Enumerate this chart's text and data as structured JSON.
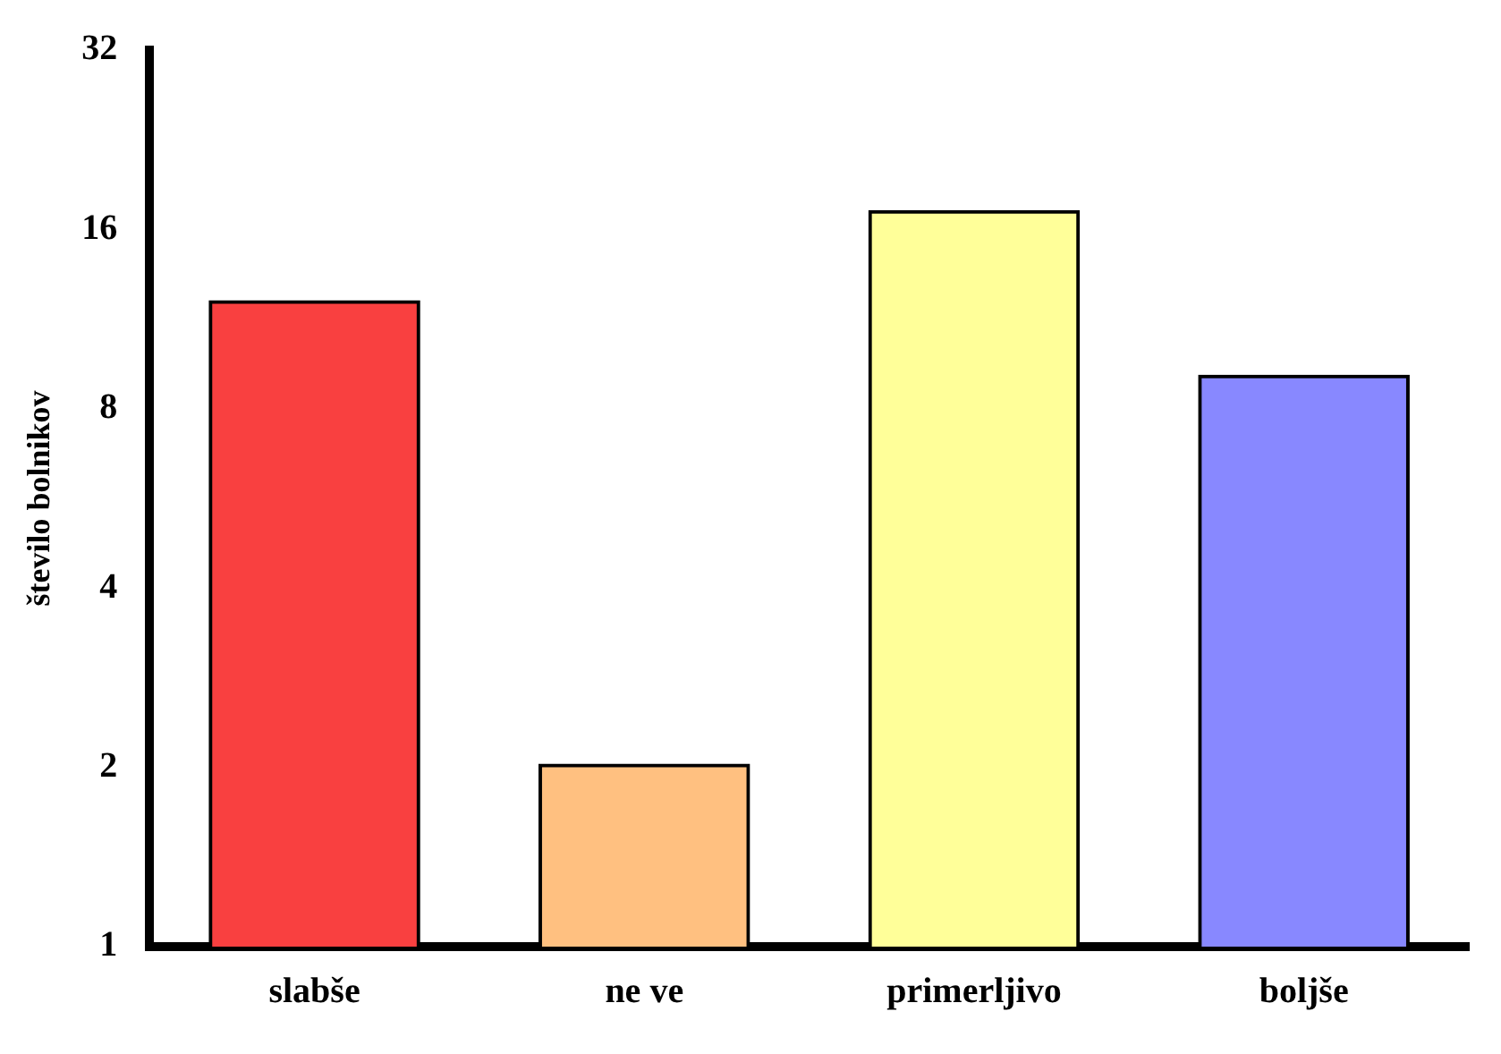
{
  "chart_data": {
    "type": "bar",
    "ylabel": "število bolnikov",
    "categories": [
      "slabše",
      "ne ve",
      "primerljivo",
      "boljše"
    ],
    "values": [
      12,
      2,
      17,
      9
    ],
    "colors": [
      "#f94040",
      "#ffc080",
      "#ffff99",
      "#8888ff"
    ],
    "log": "y",
    "ylim": [
      1,
      32
    ],
    "yticks": [
      1,
      2,
      4,
      8,
      16,
      32
    ],
    "grid": false,
    "legend": false
  }
}
